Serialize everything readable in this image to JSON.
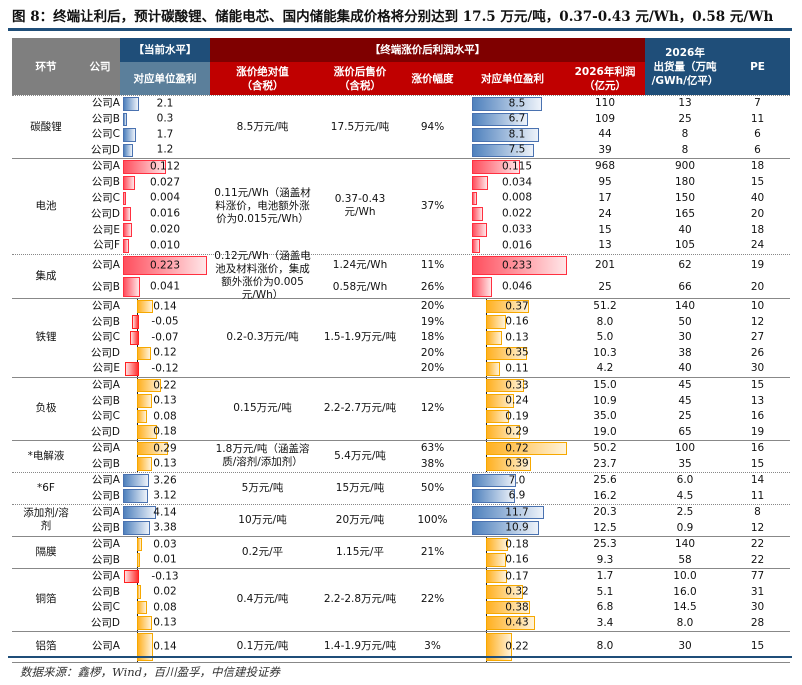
{
  "title": "图 8：终端让利后，预计碳酸锂、储能电芯、国内储能集成价格将分别达到 17.5 万元/吨，0.37-0.43 元/Wh，0.58 元/Wh",
  "header": {
    "segment": "环节",
    "company": "公司",
    "current_group": "【当前水平】",
    "current_unit": "对应单位盈利",
    "terminal_group": "【终端涨价后利润水平】",
    "abs": "涨价绝对值\n（含税）",
    "price": "涨价后售价\n（含税）",
    "pct": "涨价幅度",
    "unit": "对应单位盈利",
    "profit": "2026年利润\n（亿元）",
    "ship": "2026年\n出货量（万吨\n/GWh/亿平）",
    "pe": "PE"
  },
  "colors": {
    "blue": "#4f81bd",
    "red": "#ff4f5e",
    "orange": "#ffb020",
    "negative": "#ff3030",
    "header_gray": "#7f7f7f",
    "header_blue": "#1f4e79",
    "header_darkred": "#7f0000",
    "header_red": "#c00000",
    "subheader_blue": "#5b7f9b"
  },
  "groups": [
    {
      "segment": "碳酸锂",
      "abs": "8.5万元/吨",
      "price": "17.5万元/吨",
      "pct": "94%",
      "rows": [
        {
          "company": "公司A",
          "cur": "2.1",
          "unit": "8.5",
          "profit": "110",
          "ship": "13",
          "pe": "7"
        },
        {
          "company": "公司B",
          "cur": "0.3",
          "unit": "6.7",
          "profit": "109",
          "ship": "25",
          "pe": "11"
        },
        {
          "company": "公司C",
          "cur": "1.7",
          "unit": "8.1",
          "profit": "44",
          "ship": "8",
          "pe": "6"
        },
        {
          "company": "公司D",
          "cur": "1.2",
          "unit": "7.5",
          "profit": "39",
          "ship": "8",
          "pe": "6"
        }
      ]
    },
    {
      "segment": "电池",
      "abs": "0.11元/Wh（涵盖材料涨价，电池额外涨价为0.015元/Wh）",
      "price": "0.37-0.43元/Wh",
      "pct": "37%",
      "rows": [
        {
          "company": "公司A",
          "cur": "0.112",
          "unit": "0.115",
          "profit": "968",
          "ship": "900",
          "pe": "18"
        },
        {
          "company": "公司B",
          "cur": "0.027",
          "unit": "0.034",
          "profit": "95",
          "ship": "180",
          "pe": "15"
        },
        {
          "company": "公司C",
          "cur": "0.004",
          "unit": "0.008",
          "profit": "17",
          "ship": "150",
          "pe": "40"
        },
        {
          "company": "公司D",
          "cur": "0.016",
          "unit": "0.022",
          "profit": "24",
          "ship": "165",
          "pe": "20"
        },
        {
          "company": "公司E",
          "cur": "0.020",
          "unit": "0.033",
          "profit": "15",
          "ship": "40",
          "pe": "18"
        },
        {
          "company": "公司F",
          "cur": "0.010",
          "unit": "0.016",
          "profit": "13",
          "ship": "105",
          "pe": "24"
        }
      ]
    },
    {
      "segment": "集成",
      "abs": "0.12元/Wh（涵盖电池及材料涨价，集成额外涨价为0.005元/Wh）",
      "rows": [
        {
          "company": "公司A",
          "cur": "0.223",
          "price": "1.24元/Wh",
          "pct": "11%",
          "unit": "0.233",
          "profit": "201",
          "ship": "62",
          "pe": "19"
        },
        {
          "company": "公司B",
          "cur": "0.041",
          "price": "0.58元/Wh",
          "pct": "26%",
          "unit": "0.046",
          "profit": "25",
          "ship": "66",
          "pe": "20"
        }
      ]
    },
    {
      "segment": "铁锂",
      "abs": "0.2-0.3万元/吨",
      "price": "1.5-1.9万元/吨",
      "rows": [
        {
          "company": "公司A",
          "cur": "0.14",
          "pct": "20%",
          "unit": "0.37",
          "profit": "51.2",
          "ship": "140",
          "pe": "10"
        },
        {
          "company": "公司B",
          "cur": "-0.05",
          "pct": "19%",
          "unit": "0.16",
          "profit": "8.0",
          "ship": "50",
          "pe": "12"
        },
        {
          "company": "公司C",
          "cur": "-0.07",
          "pct": "18%",
          "unit": "0.13",
          "profit": "5.0",
          "ship": "30",
          "pe": "27"
        },
        {
          "company": "公司D",
          "cur": "0.12",
          "pct": "20%",
          "unit": "0.35",
          "profit": "10.3",
          "ship": "38",
          "pe": "26"
        },
        {
          "company": "公司E",
          "cur": "-0.12",
          "pct": "20%",
          "unit": "0.11",
          "profit": "4.2",
          "ship": "40",
          "pe": "30"
        }
      ]
    },
    {
      "segment": "负极",
      "abs": "0.15万元/吨",
      "price": "2.2-2.7万元/吨",
      "pct": "12%",
      "rows": [
        {
          "company": "公司A",
          "cur": "0.22",
          "unit": "0.33",
          "profit": "15.0",
          "ship": "45",
          "pe": "15"
        },
        {
          "company": "公司B",
          "cur": "0.13",
          "unit": "0.24",
          "profit": "10.9",
          "ship": "45",
          "pe": "13"
        },
        {
          "company": "公司C",
          "cur": "0.08",
          "unit": "0.19",
          "profit": "35.0",
          "ship": "25",
          "pe": "16"
        },
        {
          "company": "公司D",
          "cur": "0.18",
          "unit": "0.29",
          "profit": "19.0",
          "ship": "65",
          "pe": "19"
        }
      ]
    },
    {
      "segment": "*电解液",
      "abs": "1.8万元/吨（涵盖溶质/溶剂/添加剂）",
      "price": "5.4万元/吨",
      "rows": [
        {
          "company": "公司A",
          "cur": "0.29",
          "pct": "63%",
          "unit": "0.72",
          "profit": "50.2",
          "ship": "100",
          "pe": "16"
        },
        {
          "company": "公司B",
          "cur": "0.13",
          "pct": "38%",
          "unit": "0.39",
          "profit": "23.7",
          "ship": "35",
          "pe": "15"
        }
      ]
    },
    {
      "segment": "*6F",
      "abs": "5万元/吨",
      "price": "15万元/吨",
      "pct": "50%",
      "rows": [
        {
          "company": "公司A",
          "cur": "3.26",
          "unit": "7.0",
          "profit": "25.6",
          "ship": "6.0",
          "pe": "14"
        },
        {
          "company": "公司B",
          "cur": "3.12",
          "unit": "6.9",
          "profit": "16.2",
          "ship": "4.5",
          "pe": "11"
        }
      ]
    },
    {
      "segment": "添加剂/溶剂",
      "abs": "10万元/吨",
      "price": "20万元/吨",
      "pct": "100%",
      "rows": [
        {
          "company": "公司A",
          "cur": "4.14",
          "unit": "11.7",
          "profit": "20.3",
          "ship": "2.5",
          "pe": "8"
        },
        {
          "company": "公司B",
          "cur": "3.38",
          "unit": "10.9",
          "profit": "12.5",
          "ship": "0.9",
          "pe": "12"
        }
      ]
    },
    {
      "segment": "隔膜",
      "abs": "0.2元/平",
      "price": "1.15元/平",
      "pct": "21%",
      "rows": [
        {
          "company": "公司A",
          "cur": "0.03",
          "unit": "0.18",
          "profit": "25.3",
          "ship": "140",
          "pe": "22"
        },
        {
          "company": "公司B",
          "cur": "0.01",
          "unit": "0.16",
          "profit": "9.3",
          "ship": "58",
          "pe": "22"
        }
      ]
    },
    {
      "segment": "铜箔",
      "abs": "0.4万元/吨",
      "price": "2.2-2.8万元/吨",
      "pct": "22%",
      "rows": [
        {
          "company": "公司A",
          "cur": "-0.13",
          "unit": "0.17",
          "profit": "1.7",
          "ship": "10.0",
          "pe": "77"
        },
        {
          "company": "公司B",
          "cur": "0.02",
          "unit": "0.32",
          "profit": "5.1",
          "ship": "16.0",
          "pe": "31"
        },
        {
          "company": "公司C",
          "cur": "0.08",
          "unit": "0.38",
          "profit": "6.8",
          "ship": "14.5",
          "pe": "30"
        },
        {
          "company": "公司D",
          "cur": "0.13",
          "unit": "0.43",
          "profit": "3.4",
          "ship": "8.0",
          "pe": "28"
        }
      ]
    },
    {
      "segment": "铝箔",
      "abs": "0.1万元/吨",
      "price": "1.4-1.9万元/吨",
      "pct": "3%",
      "rows": [
        {
          "company": "公司A",
          "cur": "0.14",
          "unit": "0.22",
          "profit": "8.0",
          "ship": "30",
          "pe": "15"
        }
      ]
    }
  ],
  "source": "数据来源：鑫椤，Wind，百川盈孚，中信建投证券"
}
